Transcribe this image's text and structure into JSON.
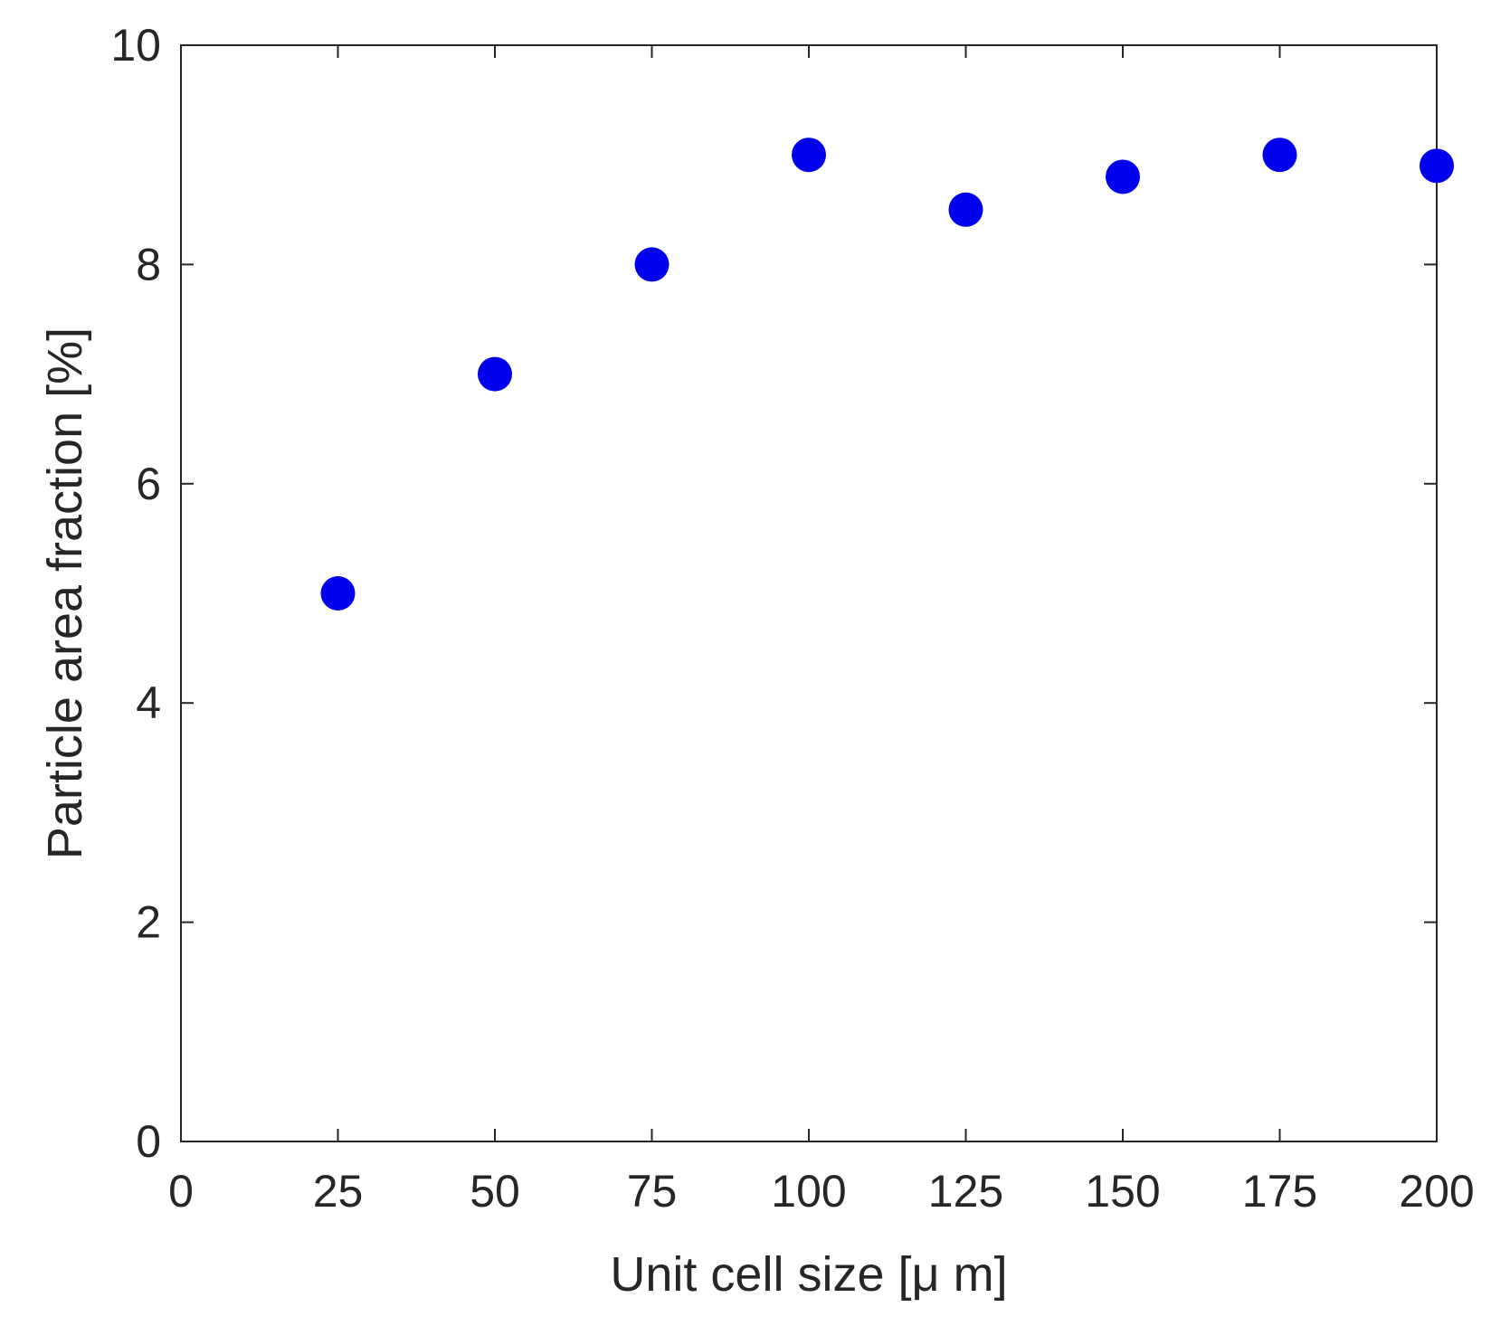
{
  "chart_data": {
    "type": "scatter",
    "title": "",
    "xlabel": "Unit cell size [μ m]",
    "ylabel": "Particle area fraction [%]",
    "xlim": [
      0,
      200
    ],
    "ylim": [
      0,
      10
    ],
    "xticks": [
      0,
      25,
      50,
      75,
      100,
      125,
      150,
      175,
      200
    ],
    "yticks": [
      0,
      2,
      4,
      6,
      8,
      10
    ],
    "xtick_labels": [
      "0",
      "25",
      "50",
      "75",
      "100",
      "125",
      "150",
      "175",
      "200"
    ],
    "ytick_labels": [
      "0",
      "2",
      "4",
      "6",
      "8",
      "10"
    ],
    "grid": false,
    "legend": "none",
    "series": [
      {
        "color": "#0000ee",
        "marker": "filled-circle",
        "x": [
          25,
          50,
          75,
          100,
          125,
          150,
          175,
          200
        ],
        "y": [
          5.0,
          7.0,
          8.0,
          9.0,
          8.5,
          8.8,
          9.0,
          8.9
        ]
      }
    ],
    "axis_color": "#262626",
    "box": true
  }
}
